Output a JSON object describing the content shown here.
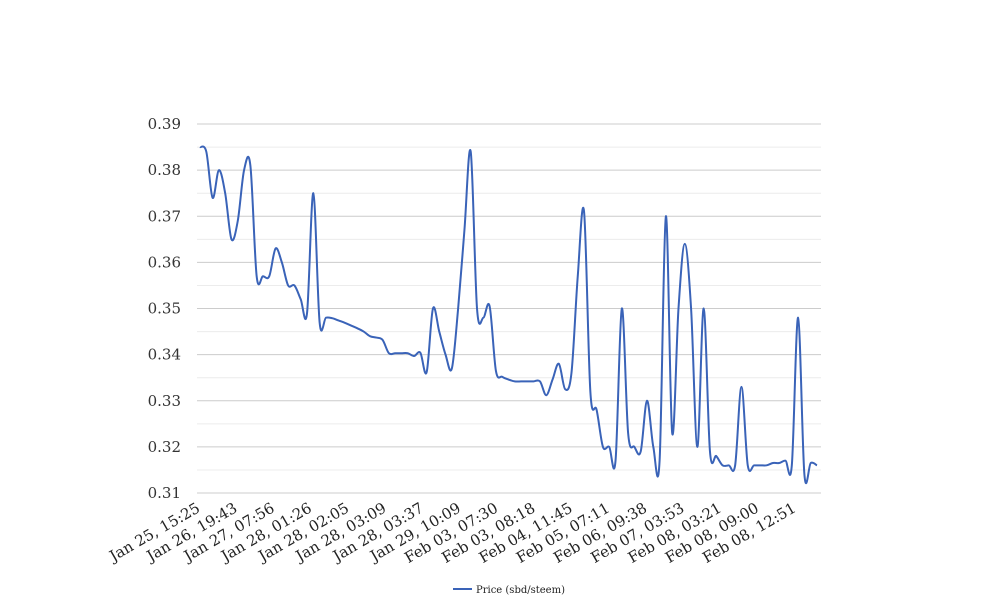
{
  "chart_data": {
    "type": "line",
    "title": "",
    "xlabel": "",
    "ylabel": "",
    "ylim": [
      0.31,
      0.39
    ],
    "y_ticks": [
      "0.39",
      "0.38",
      "0.37",
      "0.36",
      "0.35",
      "0.34",
      "0.33",
      "0.32",
      "0.31"
    ],
    "y_tick_values": [
      0.39,
      0.38,
      0.37,
      0.36,
      0.35,
      0.34,
      0.33,
      0.32,
      0.31
    ],
    "grid": true,
    "legend_position": "bottom",
    "x_tick_labels": [
      "Jan 25, 15:25",
      "Jan 26, 19:43",
      "Jan 27, 07:56",
      "Jan 28, 01:26",
      "Jan 28, 02:05",
      "Jan 28, 03:09",
      "Jan 28, 03:37",
      "Jan 29, 10:09",
      "Feb 03, 07:30",
      "Feb 03, 08:18",
      "Feb 04, 11:45",
      "Feb 05, 07:11",
      "Feb 06, 09:38",
      "Feb 07, 03:53",
      "Feb 08, 03:21",
      "Feb 08, 09:00",
      "Feb 08, 12:51"
    ],
    "series": [
      {
        "name": "Price (sbd/steem)",
        "color": "#3a63b8",
        "values": [
          0.385,
          0.384,
          0.374,
          0.38,
          0.375,
          0.365,
          0.369,
          0.38,
          0.381,
          0.357,
          0.357,
          0.357,
          0.363,
          0.36,
          0.355,
          0.355,
          0.352,
          0.349,
          0.375,
          0.347,
          0.348,
          0.3479,
          0.3474,
          0.3469,
          0.3463,
          0.3457,
          0.345,
          0.344,
          0.3437,
          0.3432,
          0.3403,
          0.3403,
          0.3403,
          0.3403,
          0.3397,
          0.3404,
          0.3362,
          0.35,
          0.345,
          0.34,
          0.337,
          0.35,
          0.367,
          0.384,
          0.35,
          0.348,
          0.3505,
          0.3365,
          0.3352,
          0.3346,
          0.3342,
          0.3342,
          0.3342,
          0.3342,
          0.3342,
          0.3312,
          0.3346,
          0.338,
          0.3325,
          0.336,
          0.357,
          0.371,
          0.332,
          0.328,
          0.32,
          0.32,
          0.317,
          0.35,
          0.323,
          0.32,
          0.319,
          0.33,
          0.32,
          0.317,
          0.37,
          0.323,
          0.35,
          0.364,
          0.35,
          0.32,
          0.35,
          0.319,
          0.318,
          0.316,
          0.316,
          0.316,
          0.333,
          0.316,
          0.316,
          0.316,
          0.316,
          0.3165,
          0.3165,
          0.317,
          0.316,
          0.348,
          0.314,
          0.3165,
          0.316
        ]
      }
    ]
  }
}
